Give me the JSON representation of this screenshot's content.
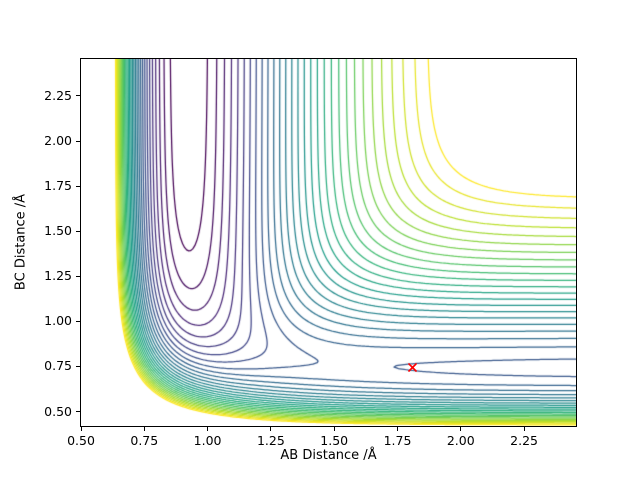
{
  "chart_data": {
    "type": "contour",
    "title": "",
    "xlabel": "AB Distance /Å",
    "ylabel": "BC Distance /Å",
    "xlim": [
      0.5,
      2.455
    ],
    "ylim": [
      0.42,
      2.455
    ],
    "x_ticks": {
      "values": [
        0.5,
        0.75,
        1.0,
        1.25,
        1.5,
        1.75,
        2.0,
        2.25
      ],
      "labels": [
        "0.50",
        "0.75",
        "1.00",
        "1.25",
        "1.50",
        "1.75",
        "2.00",
        "2.25"
      ]
    },
    "y_ticks": {
      "values": [
        0.5,
        0.75,
        1.0,
        1.25,
        1.5,
        1.75,
        2.0,
        2.25
      ],
      "labels": [
        "0.50",
        "0.75",
        "1.00",
        "1.25",
        "1.50",
        "1.75",
        "2.00",
        "2.25"
      ]
    },
    "colormap": "viridis",
    "colormap_stops": [
      "#440154",
      "#482878",
      "#3e4989",
      "#31688e",
      "#26828e",
      "#1f9e89",
      "#35b779",
      "#6ece58",
      "#b5de2b",
      "#fde725"
    ],
    "levels": {
      "min": -5.95,
      "max": -1.4,
      "count": 30
    },
    "surface": {
      "model": "LEPS",
      "sato": 0.15,
      "pairs": {
        "AB": {
          "D": 6.12,
          "a": 2.22,
          "re": 0.92
        },
        "BC": {
          "D": 4.75,
          "a": 1.94,
          "re": 0.74
        },
        "AC": {
          "D": 6.12,
          "a": 2.22,
          "re": 0.92
        }
      }
    },
    "marker": {
      "x": 1.81,
      "y": 0.745,
      "symbol": "x",
      "color": "#ff0000"
    },
    "line_color_low": "#440154",
    "line_color_high": "#fde725"
  }
}
